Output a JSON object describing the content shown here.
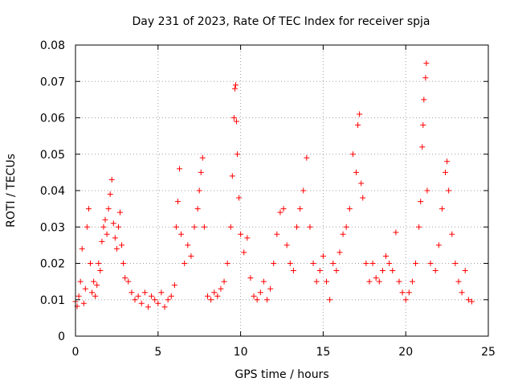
{
  "chart_data": {
    "type": "scatter",
    "title": "Day 231 of 2023, Rate Of TEC Index for receiver spja",
    "xlabel": "GPS time / hours",
    "ylabel": "ROTI / TECUs",
    "xlim": [
      0,
      25
    ],
    "ylim": [
      0,
      0.08
    ],
    "xticks": [
      0,
      5,
      10,
      15,
      20,
      25
    ],
    "xtick_labels": [
      "0",
      "5",
      "10",
      "15",
      "20",
      "25"
    ],
    "yticks": [
      0,
      0.01,
      0.02,
      0.03,
      0.04,
      0.05,
      0.06,
      0.07,
      0.08
    ],
    "ytick_labels": [
      "0",
      "0.01",
      "0.02",
      "0.03",
      "0.04",
      "0.05",
      "0.06",
      "0.07",
      "0.08"
    ],
    "grid": true,
    "marker": "+",
    "color": "#ff0000",
    "series": [
      {
        "name": "ROTI",
        "points": [
          [
            0.0,
            0.0095
          ],
          [
            0.1,
            0.0082
          ],
          [
            0.2,
            0.011
          ],
          [
            0.3,
            0.015
          ],
          [
            0.4,
            0.024
          ],
          [
            0.5,
            0.009
          ],
          [
            0.6,
            0.013
          ],
          [
            0.7,
            0.03
          ],
          [
            0.8,
            0.035
          ],
          [
            0.9,
            0.02
          ],
          [
            1.0,
            0.012
          ],
          [
            1.1,
            0.015
          ],
          [
            1.2,
            0.011
          ],
          [
            1.3,
            0.014
          ],
          [
            1.4,
            0.02
          ],
          [
            1.5,
            0.018
          ],
          [
            1.6,
            0.026
          ],
          [
            1.7,
            0.03
          ],
          [
            1.8,
            0.032
          ],
          [
            1.9,
            0.028
          ],
          [
            2.0,
            0.035
          ],
          [
            2.1,
            0.039
          ],
          [
            2.2,
            0.043
          ],
          [
            2.3,
            0.031
          ],
          [
            2.4,
            0.027
          ],
          [
            2.5,
            0.024
          ],
          [
            2.6,
            0.03
          ],
          [
            2.7,
            0.034
          ],
          [
            2.8,
            0.025
          ],
          [
            2.9,
            0.02
          ],
          [
            3.0,
            0.016
          ],
          [
            3.2,
            0.015
          ],
          [
            3.4,
            0.012
          ],
          [
            3.6,
            0.01
          ],
          [
            3.8,
            0.011
          ],
          [
            4.0,
            0.009
          ],
          [
            4.2,
            0.012
          ],
          [
            4.4,
            0.008
          ],
          [
            4.6,
            0.011
          ],
          [
            4.8,
            0.01
          ],
          [
            5.0,
            0.009
          ],
          [
            5.2,
            0.012
          ],
          [
            5.4,
            0.008
          ],
          [
            5.6,
            0.01
          ],
          [
            5.8,
            0.011
          ],
          [
            6.0,
            0.014
          ],
          [
            6.1,
            0.03
          ],
          [
            6.2,
            0.037
          ],
          [
            6.3,
            0.046
          ],
          [
            6.4,
            0.028
          ],
          [
            6.6,
            0.02
          ],
          [
            6.8,
            0.025
          ],
          [
            7.0,
            0.022
          ],
          [
            7.2,
            0.03
          ],
          [
            7.4,
            0.035
          ],
          [
            7.5,
            0.04
          ],
          [
            7.6,
            0.045
          ],
          [
            7.7,
            0.049
          ],
          [
            7.8,
            0.03
          ],
          [
            8.0,
            0.011
          ],
          [
            8.2,
            0.01
          ],
          [
            8.4,
            0.012
          ],
          [
            8.6,
            0.011
          ],
          [
            8.8,
            0.013
          ],
          [
            9.0,
            0.015
          ],
          [
            9.2,
            0.02
          ],
          [
            9.4,
            0.03
          ],
          [
            9.5,
            0.044
          ],
          [
            9.6,
            0.06
          ],
          [
            9.65,
            0.068
          ],
          [
            9.7,
            0.069
          ],
          [
            9.75,
            0.059
          ],
          [
            9.8,
            0.05
          ],
          [
            9.9,
            0.038
          ],
          [
            10.0,
            0.028
          ],
          [
            10.2,
            0.023
          ],
          [
            10.4,
            0.027
          ],
          [
            10.6,
            0.016
          ],
          [
            10.8,
            0.011
          ],
          [
            11.0,
            0.01
          ],
          [
            11.2,
            0.012
          ],
          [
            11.4,
            0.015
          ],
          [
            11.6,
            0.01
          ],
          [
            11.8,
            0.013
          ],
          [
            12.0,
            0.02
          ],
          [
            12.2,
            0.028
          ],
          [
            12.4,
            0.034
          ],
          [
            12.6,
            0.035
          ],
          [
            12.8,
            0.025
          ],
          [
            13.0,
            0.02
          ],
          [
            13.2,
            0.018
          ],
          [
            13.4,
            0.03
          ],
          [
            13.6,
            0.035
          ],
          [
            13.8,
            0.04
          ],
          [
            14.0,
            0.049
          ],
          [
            14.2,
            0.03
          ],
          [
            14.4,
            0.02
          ],
          [
            14.6,
            0.015
          ],
          [
            14.8,
            0.018
          ],
          [
            15.0,
            0.022
          ],
          [
            15.2,
            0.015
          ],
          [
            15.4,
            0.01
          ],
          [
            15.6,
            0.02
          ],
          [
            15.8,
            0.018
          ],
          [
            16.0,
            0.023
          ],
          [
            16.2,
            0.028
          ],
          [
            16.4,
            0.03
          ],
          [
            16.6,
            0.035
          ],
          [
            16.8,
            0.05
          ],
          [
            17.0,
            0.045
          ],
          [
            17.1,
            0.058
          ],
          [
            17.2,
            0.061
          ],
          [
            17.3,
            0.042
          ],
          [
            17.4,
            0.038
          ],
          [
            17.6,
            0.02
          ],
          [
            17.8,
            0.015
          ],
          [
            18.0,
            0.02
          ],
          [
            18.2,
            0.016
          ],
          [
            18.4,
            0.015
          ],
          [
            18.6,
            0.018
          ],
          [
            18.8,
            0.022
          ],
          [
            19.0,
            0.02
          ],
          [
            19.2,
            0.018
          ],
          [
            19.4,
            0.0285
          ],
          [
            19.6,
            0.015
          ],
          [
            19.8,
            0.012
          ],
          [
            20.0,
            0.01
          ],
          [
            20.2,
            0.012
          ],
          [
            20.4,
            0.015
          ],
          [
            20.6,
            0.02
          ],
          [
            20.8,
            0.03
          ],
          [
            20.9,
            0.037
          ],
          [
            21.0,
            0.052
          ],
          [
            21.05,
            0.058
          ],
          [
            21.1,
            0.065
          ],
          [
            21.2,
            0.071
          ],
          [
            21.25,
            0.075
          ],
          [
            21.3,
            0.04
          ],
          [
            21.5,
            0.02
          ],
          [
            21.8,
            0.018
          ],
          [
            22.0,
            0.025
          ],
          [
            22.2,
            0.035
          ],
          [
            22.4,
            0.045
          ],
          [
            22.5,
            0.048
          ],
          [
            22.6,
            0.04
          ],
          [
            22.8,
            0.028
          ],
          [
            23.0,
            0.02
          ],
          [
            23.2,
            0.015
          ],
          [
            23.4,
            0.012
          ],
          [
            23.6,
            0.018
          ],
          [
            23.8,
            0.01
          ],
          [
            24.0,
            0.0095
          ]
        ]
      }
    ]
  }
}
